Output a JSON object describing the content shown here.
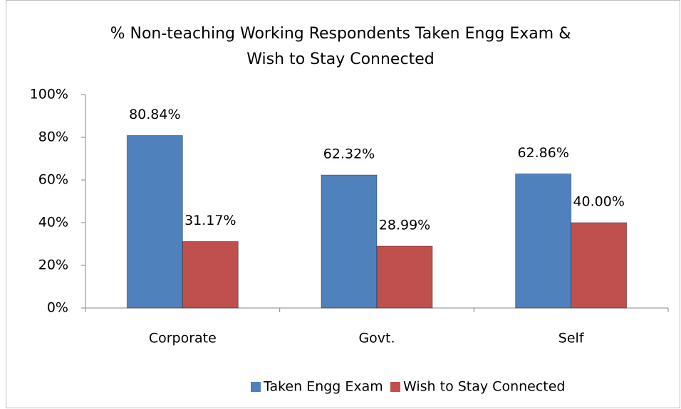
{
  "chart_data": {
    "type": "bar",
    "title": [
      "% Non-teaching Working Respondents Taken Engg Exam &",
      "Wish to Stay Connected"
    ],
    "categories": [
      "Corporate",
      "Govt.",
      "Self"
    ],
    "series": [
      {
        "name": "Taken Engg Exam",
        "color": "#4f81bd",
        "values": [
          80.84,
          62.32,
          62.86
        ],
        "value_labels": [
          "80.84%",
          "62.32%",
          "62.86%"
        ]
      },
      {
        "name": "Wish to Stay Connected",
        "color": "#c0504d",
        "values": [
          31.17,
          28.99,
          40.0
        ],
        "value_labels": [
          "31.17%",
          "28.99%",
          "40.00%"
        ]
      }
    ],
    "ylim": [
      0,
      100
    ],
    "yticks": [
      {
        "value": 0,
        "label": "0%"
      },
      {
        "value": 20,
        "label": "20%"
      },
      {
        "value": 40,
        "label": "40%"
      },
      {
        "value": 60,
        "label": "60%"
      },
      {
        "value": 80,
        "label": "80%"
      },
      {
        "value": 100,
        "label": "100%"
      }
    ],
    "grid": false,
    "legend": "bottom"
  }
}
